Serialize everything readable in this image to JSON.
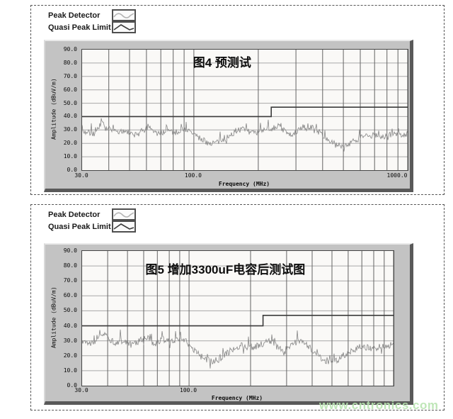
{
  "page": {
    "watermark": "www.cntronics.com",
    "watermark_color": "#b9e4b1"
  },
  "legend": {
    "peak_detector": "Peak Detector",
    "quasi_peak_limit": "Quasi Peak Limit"
  },
  "colors": {
    "panel": "#c3c3c3",
    "plot_background": "#faf9f7",
    "trace": "#858585",
    "limit_line": "#3b3b3b",
    "v_grid": "#636363",
    "h_grid": "#a8a8a8"
  },
  "charts": [
    {
      "title": "图4 预测试",
      "ylabel": "Amplitude (dBuV/m)",
      "xlabel": "Frequency (MHz)",
      "y_ticks": [
        "90.0",
        "80.0",
        "70.0",
        "60.0",
        "50.0",
        "40.0",
        "30.0",
        "20.0",
        "10.0",
        "0.0"
      ],
      "x_ticks": [
        {
          "label": "30.0",
          "value": 30
        },
        {
          "label": "100.0",
          "value": 100
        },
        {
          "label": "1000.0",
          "value": 1000
        }
      ]
    },
    {
      "title": "图5 增加3300uF电容后测试图",
      "ylabel": "Amplitude (dBuV/m)",
      "xlabel": "Frequency (MHz)",
      "y_ticks": [
        "90.0",
        "80.0",
        "70.0",
        "60.0",
        "50.0",
        "40.0",
        "30.0",
        "20.0",
        "10.0",
        "0.0"
      ],
      "x_ticks": [
        {
          "label": "30.0",
          "value": 30
        },
        {
          "label": "100.0",
          "value": 100
        }
      ]
    }
  ],
  "chart_data": [
    {
      "type": "line",
      "title": "图4 预测试",
      "xlabel": "Frequency (MHz)",
      "ylabel": "Amplitude (dBuV/m)",
      "x_scale": "log",
      "xlim": [
        30,
        1000
      ],
      "ylim": [
        0,
        90
      ],
      "y_tick_step": 10,
      "grid": true,
      "legend_position": "top-left-outside",
      "x_gridlines": [
        40,
        50,
        60,
        70,
        80,
        90,
        100,
        200,
        300,
        400,
        500,
        600,
        700,
        800,
        900,
        1000
      ],
      "seed": 7,
      "series": [
        {
          "name": "Quasi Peak Limit",
          "style": "step",
          "x": [
            30,
            230,
            230,
            1000
          ],
          "values": [
            40,
            40,
            47,
            47
          ]
        },
        {
          "name": "Peak Detector",
          "style": "noisy-envelope",
          "noise": 4.5,
          "x": [
            30,
            34,
            37,
            40,
            44,
            48,
            52,
            57,
            62,
            68,
            75,
            82,
            90,
            100,
            108,
            118,
            130,
            142,
            155,
            168,
            180,
            195,
            210,
            230,
            250,
            270,
            290,
            310,
            340,
            370,
            400,
            430,
            460,
            500,
            540,
            580,
            630,
            700,
            780,
            860,
            940,
            1000
          ],
          "values": [
            29,
            27,
            35,
            31,
            27,
            30,
            26,
            29,
            31,
            27,
            30,
            28,
            31,
            27,
            23,
            20,
            21,
            24,
            28,
            31,
            29,
            27,
            29,
            31,
            33,
            28,
            25,
            30,
            33,
            31,
            26,
            22,
            19,
            18,
            20,
            23,
            25,
            26,
            25,
            27,
            26,
            27
          ]
        }
      ]
    },
    {
      "type": "line",
      "title": "图5 增加3300uF电容后测试图",
      "xlabel": "Frequency (MHz)",
      "ylabel": "Amplitude (dBuV/m)",
      "x_scale": "log",
      "xlim": [
        30,
        1000
      ],
      "ylim": [
        0,
        90
      ],
      "y_tick_step": 10,
      "grid": true,
      "legend_position": "top-left-outside",
      "x_gridlines": [
        40,
        50,
        60,
        70,
        80,
        90,
        100,
        200,
        300,
        400,
        500,
        600,
        700,
        800,
        900,
        1000
      ],
      "seed": 13,
      "series": [
        {
          "name": "Quasi Peak Limit",
          "style": "step",
          "x": [
            30,
            230,
            230,
            1000
          ],
          "values": [
            40,
            40,
            47,
            47
          ]
        },
        {
          "name": "Peak Detector",
          "style": "noisy-envelope",
          "noise": 4.5,
          "x": [
            30,
            34,
            37,
            40,
            44,
            48,
            52,
            57,
            62,
            68,
            75,
            82,
            90,
            100,
            108,
            118,
            130,
            142,
            155,
            168,
            180,
            195,
            210,
            230,
            250,
            270,
            290,
            310,
            340,
            370,
            400,
            430,
            460,
            500,
            540,
            580,
            630,
            700,
            780,
            860,
            940,
            1000
          ],
          "values": [
            30,
            28,
            36,
            32,
            28,
            31,
            27,
            30,
            32,
            28,
            31,
            29,
            32,
            28,
            23,
            18,
            16,
            18,
            22,
            26,
            27,
            25,
            26,
            28,
            30,
            26,
            22,
            26,
            30,
            28,
            24,
            20,
            17,
            16,
            18,
            21,
            24,
            26,
            25,
            26,
            26,
            27
          ]
        }
      ]
    }
  ]
}
